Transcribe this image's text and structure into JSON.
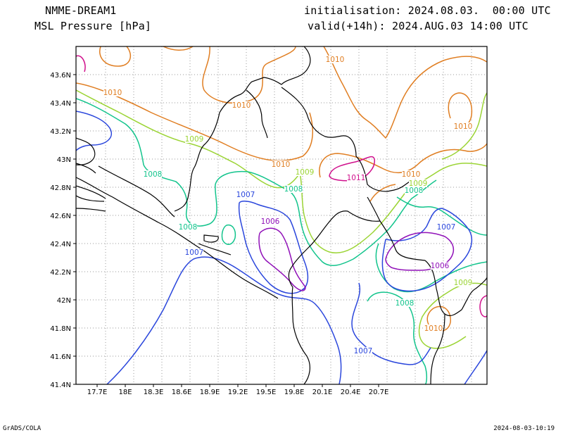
{
  "header": {
    "model": "NMME-DREAM1",
    "field": "MSL Pressure [hPa]",
    "initialisation": "initialisation: 2024.08.03.  00:00 UTC",
    "valid": "valid(+14h): 2024.AUG.03 14:00 UTC"
  },
  "footer": {
    "credit": "GrADS/COLA",
    "timestamp": "2024-08-03-10:19"
  },
  "map": {
    "lon_ticks": [
      "17.7E",
      "18E",
      "18.3E",
      "18.6E",
      "18.9E",
      "19.2E",
      "19.5E",
      "19.8E",
      "20.1E",
      "20.4E",
      "20.7E"
    ],
    "lat_ticks": [
      "43.6N",
      "43.4N",
      "43.2N",
      "43N",
      "42.8N",
      "42.6N",
      "42.4N",
      "42.2N",
      "42N",
      "41.8N",
      "41.6N",
      "41.4N"
    ],
    "contour_labels": [
      {
        "text": "1010",
        "color": "#e07e22"
      },
      {
        "text": "1010",
        "color": "#e07e22"
      },
      {
        "text": "1010",
        "color": "#e07e22"
      },
      {
        "text": "1010",
        "color": "#e07e22"
      },
      {
        "text": "1010",
        "color": "#e07e22"
      },
      {
        "text": "1010",
        "color": "#e07e22"
      },
      {
        "text": "1010",
        "color": "#e07e22"
      },
      {
        "text": "1009",
        "color": "#9bd434"
      },
      {
        "text": "1009",
        "color": "#9bd434"
      },
      {
        "text": "1009",
        "color": "#9bd434"
      },
      {
        "text": "1009",
        "color": "#9bd434"
      },
      {
        "text": "1011",
        "color": "#d0108c"
      },
      {
        "text": "1008",
        "color": "#12c48c"
      },
      {
        "text": "1008",
        "color": "#12c48c"
      },
      {
        "text": "1008",
        "color": "#12c48c"
      },
      {
        "text": "1008",
        "color": "#12c48c"
      },
      {
        "text": "1008",
        "color": "#12c48c"
      },
      {
        "text": "1007",
        "color": "#2a46dc"
      },
      {
        "text": "1007",
        "color": "#2a46dc"
      },
      {
        "text": "1007",
        "color": "#2a46dc"
      },
      {
        "text": "1007",
        "color": "#2a46dc"
      },
      {
        "text": "1006",
        "color": "#9010b8"
      },
      {
        "text": "1006",
        "color": "#9010b8"
      }
    ],
    "colors": {
      "c1011": "#d0108c",
      "c1010": "#e07e22",
      "c1009": "#9bd434",
      "c1008": "#12c48c",
      "c1007": "#2a46dc",
      "c1006": "#9010b8",
      "coast": "#000000",
      "grid": "#9a9a9a"
    }
  }
}
